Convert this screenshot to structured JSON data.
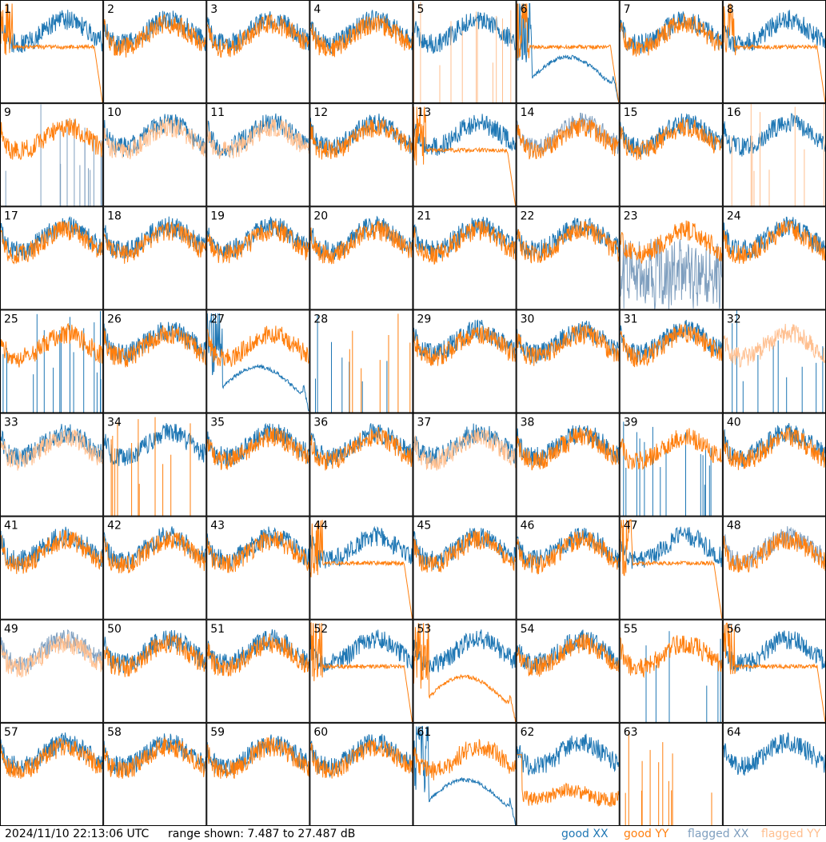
{
  "timestamp": "2024/11/10 22:13:06 UTC",
  "range_label": "range shown: 7.487 to 27.487 dB",
  "legend": {
    "good_xx": "good XX",
    "good_yy": "good YY",
    "flagged_xx": "flagged XX",
    "flagged_yy": "flagged YY"
  },
  "colors": {
    "good_xx": "#1f77b4",
    "good_yy": "#ff7f0e",
    "flagged_xx": "#7f9fbf",
    "flagged_yy": "#ffbf8f"
  },
  "chart_data": {
    "type": "line",
    "title": "",
    "grid": {
      "rows": 8,
      "cols": 8
    },
    "ylim": [
      7.487,
      27.487
    ],
    "yunit": "dB",
    "series_names": [
      "good XX",
      "good YY",
      "flagged XX",
      "flagged YY"
    ],
    "panels": [
      {
        "id": "1",
        "xx": "good",
        "yy": "good",
        "xx_shape": "normal",
        "yy_shape": "rolloff"
      },
      {
        "id": "2",
        "xx": "good",
        "yy": "good",
        "xx_shape": "normal",
        "yy_shape": "normal"
      },
      {
        "id": "3",
        "xx": "good",
        "yy": "good",
        "xx_shape": "normal",
        "yy_shape": "normal"
      },
      {
        "id": "4",
        "xx": "good",
        "yy": "good",
        "xx_shape": "normal",
        "yy_shape": "normal"
      },
      {
        "id": "5",
        "xx": "good",
        "yy": "flagged",
        "xx_shape": "normal",
        "yy_shape": "spikes"
      },
      {
        "id": "6",
        "xx": "good",
        "yy": "good",
        "xx_shape": "hump",
        "yy_shape": "rolloff"
      },
      {
        "id": "7",
        "xx": "good",
        "yy": "good",
        "xx_shape": "normal",
        "yy_shape": "normal"
      },
      {
        "id": "8",
        "xx": "good",
        "yy": "good",
        "xx_shape": "normal",
        "yy_shape": "rolloff"
      },
      {
        "id": "9",
        "xx": "flagged",
        "yy": "good",
        "xx_shape": "spikes",
        "yy_shape": "normal"
      },
      {
        "id": "10",
        "xx": "good",
        "yy": "flagged",
        "xx_shape": "normal",
        "yy_shape": "normal"
      },
      {
        "id": "11",
        "xx": "good",
        "yy": "flagged",
        "xx_shape": "normal",
        "yy_shape": "normal"
      },
      {
        "id": "12",
        "xx": "good",
        "yy": "good",
        "xx_shape": "normal",
        "yy_shape": "normal"
      },
      {
        "id": "13",
        "xx": "good",
        "yy": "good",
        "xx_shape": "normal",
        "yy_shape": "rolloff"
      },
      {
        "id": "14",
        "xx": "flagged",
        "yy": "good",
        "xx_shape": "normal",
        "yy_shape": "normal"
      },
      {
        "id": "15",
        "xx": "good",
        "yy": "good",
        "xx_shape": "normal",
        "yy_shape": "normal"
      },
      {
        "id": "16",
        "xx": "good",
        "yy": "flagged",
        "xx_shape": "normal",
        "yy_shape": "spikes"
      },
      {
        "id": "17",
        "xx": "good",
        "yy": "good",
        "xx_shape": "normal",
        "yy_shape": "normal"
      },
      {
        "id": "18",
        "xx": "good",
        "yy": "good",
        "xx_shape": "normal",
        "yy_shape": "normal"
      },
      {
        "id": "19",
        "xx": "good",
        "yy": "good",
        "xx_shape": "normal",
        "yy_shape": "normal"
      },
      {
        "id": "20",
        "xx": "good",
        "yy": "good",
        "xx_shape": "normal",
        "yy_shape": "normal"
      },
      {
        "id": "21",
        "xx": "good",
        "yy": "good",
        "xx_shape": "normal",
        "yy_shape": "normal"
      },
      {
        "id": "22",
        "xx": "good",
        "yy": "good",
        "xx_shape": "normal",
        "yy_shape": "normal"
      },
      {
        "id": "23",
        "xx": "flagged",
        "yy": "good",
        "xx_shape": "noisy",
        "yy_shape": "normal"
      },
      {
        "id": "24",
        "xx": "good",
        "yy": "good",
        "xx_shape": "normal",
        "yy_shape": "normal"
      },
      {
        "id": "25",
        "xx": "good",
        "yy": "good",
        "xx_shape": "spikes",
        "yy_shape": "normal"
      },
      {
        "id": "26",
        "xx": "good",
        "yy": "good",
        "xx_shape": "normal",
        "yy_shape": "normal"
      },
      {
        "id": "27",
        "xx": "good",
        "yy": "good",
        "xx_shape": "hump",
        "yy_shape": "normal"
      },
      {
        "id": "28",
        "xx": "good",
        "yy": "good",
        "xx_shape": "spikes",
        "yy_shape": "spikes"
      },
      {
        "id": "29",
        "xx": "good",
        "yy": "good",
        "xx_shape": "normal",
        "yy_shape": "normal"
      },
      {
        "id": "30",
        "xx": "good",
        "yy": "good",
        "xx_shape": "normal",
        "yy_shape": "normal"
      },
      {
        "id": "31",
        "xx": "good",
        "yy": "good",
        "xx_shape": "normal",
        "yy_shape": "normal"
      },
      {
        "id": "32",
        "xx": "good",
        "yy": "flagged",
        "xx_shape": "spikes",
        "yy_shape": "normal"
      },
      {
        "id": "33",
        "xx": "good",
        "yy": "flagged",
        "xx_shape": "normal",
        "yy_shape": "normal"
      },
      {
        "id": "34",
        "xx": "good",
        "yy": "good",
        "xx_shape": "normal",
        "yy_shape": "spikes"
      },
      {
        "id": "35",
        "xx": "good",
        "yy": "good",
        "xx_shape": "normal",
        "yy_shape": "normal"
      },
      {
        "id": "36",
        "xx": "good",
        "yy": "good",
        "xx_shape": "normal",
        "yy_shape": "normal"
      },
      {
        "id": "37",
        "xx": "good",
        "yy": "flagged",
        "xx_shape": "normal",
        "yy_shape": "normal"
      },
      {
        "id": "38",
        "xx": "good",
        "yy": "good",
        "xx_shape": "normal",
        "yy_shape": "normal"
      },
      {
        "id": "39",
        "xx": "good",
        "yy": "good",
        "xx_shape": "spikes",
        "yy_shape": "normal"
      },
      {
        "id": "40",
        "xx": "good",
        "yy": "good",
        "xx_shape": "normal",
        "yy_shape": "normal"
      },
      {
        "id": "41",
        "xx": "good",
        "yy": "good",
        "xx_shape": "normal",
        "yy_shape": "normal"
      },
      {
        "id": "42",
        "xx": "good",
        "yy": "good",
        "xx_shape": "normal",
        "yy_shape": "normal"
      },
      {
        "id": "43",
        "xx": "good",
        "yy": "good",
        "xx_shape": "normal",
        "yy_shape": "normal"
      },
      {
        "id": "44",
        "xx": "good",
        "yy": "good",
        "xx_shape": "normal",
        "yy_shape": "rolloff"
      },
      {
        "id": "45",
        "xx": "good",
        "yy": "good",
        "xx_shape": "normal",
        "yy_shape": "normal"
      },
      {
        "id": "46",
        "xx": "good",
        "yy": "good",
        "xx_shape": "normal",
        "yy_shape": "normal"
      },
      {
        "id": "47",
        "xx": "good",
        "yy": "good",
        "xx_shape": "normal",
        "yy_shape": "rolloff"
      },
      {
        "id": "48",
        "xx": "flagged",
        "yy": "good",
        "xx_shape": "normal",
        "yy_shape": "normal"
      },
      {
        "id": "49",
        "xx": "flagged",
        "yy": "flagged",
        "xx_shape": "normal",
        "yy_shape": "normal"
      },
      {
        "id": "50",
        "xx": "good",
        "yy": "good",
        "xx_shape": "normal",
        "yy_shape": "normal"
      },
      {
        "id": "51",
        "xx": "good",
        "yy": "good",
        "xx_shape": "normal",
        "yy_shape": "normal"
      },
      {
        "id": "52",
        "xx": "good",
        "yy": "good",
        "xx_shape": "normal",
        "yy_shape": "rolloff"
      },
      {
        "id": "53",
        "xx": "good",
        "yy": "good",
        "xx_shape": "normal",
        "yy_shape": "hump"
      },
      {
        "id": "54",
        "xx": "good",
        "yy": "good",
        "xx_shape": "normal",
        "yy_shape": "normal"
      },
      {
        "id": "55",
        "xx": "good",
        "yy": "good",
        "xx_shape": "spikes",
        "yy_shape": "normal"
      },
      {
        "id": "56",
        "xx": "good",
        "yy": "good",
        "xx_shape": "normal",
        "yy_shape": "rolloff"
      },
      {
        "id": "57",
        "xx": "good",
        "yy": "good",
        "xx_shape": "normal",
        "yy_shape": "normal"
      },
      {
        "id": "58",
        "xx": "good",
        "yy": "good",
        "xx_shape": "normal",
        "yy_shape": "normal"
      },
      {
        "id": "59",
        "xx": "good",
        "yy": "good",
        "xx_shape": "normal",
        "yy_shape": "normal"
      },
      {
        "id": "60",
        "xx": "good",
        "yy": "good",
        "xx_shape": "normal",
        "yy_shape": "normal"
      },
      {
        "id": "61",
        "xx": "good",
        "yy": "good",
        "xx_shape": "hump",
        "yy_shape": "normal"
      },
      {
        "id": "62",
        "xx": "good",
        "yy": "good",
        "xx_shape": "normal",
        "yy_shape": "low"
      },
      {
        "id": "63",
        "xx": "good",
        "yy": "good",
        "xx_shape": "none",
        "yy_shape": "spikes"
      },
      {
        "id": "64",
        "xx": "good",
        "yy": "good",
        "xx_shape": "normal",
        "yy_shape": "none"
      }
    ]
  }
}
